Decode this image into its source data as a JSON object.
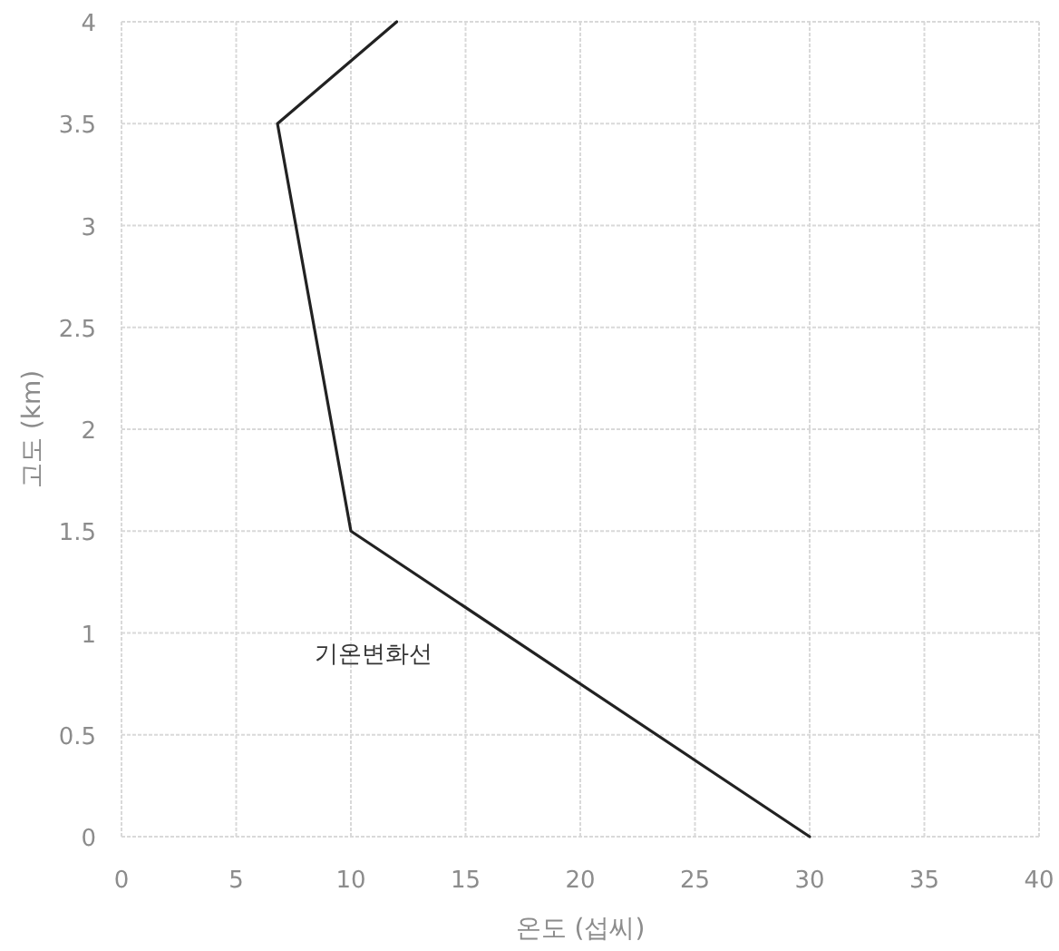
{
  "chart_data": {
    "type": "line",
    "xlabel": "온도 (섭씨)",
    "ylabel": "고도 (km)",
    "series": [
      {
        "name": "기온변화선",
        "color": "#222222",
        "x": [
          30,
          10,
          6.8,
          12
        ],
        "values": [
          0,
          1.5,
          3.5,
          4
        ]
      }
    ],
    "xlim": [
      0,
      40
    ],
    "xticks": [
      0,
      5,
      10,
      15,
      20,
      25,
      30,
      35,
      40
    ],
    "ylim": [
      0,
      4
    ],
    "yticks": [
      0,
      0.5,
      1,
      1.5,
      2,
      2.5,
      3,
      3.5,
      4
    ],
    "grid": true,
    "marker": "none",
    "line_style": "solid"
  }
}
